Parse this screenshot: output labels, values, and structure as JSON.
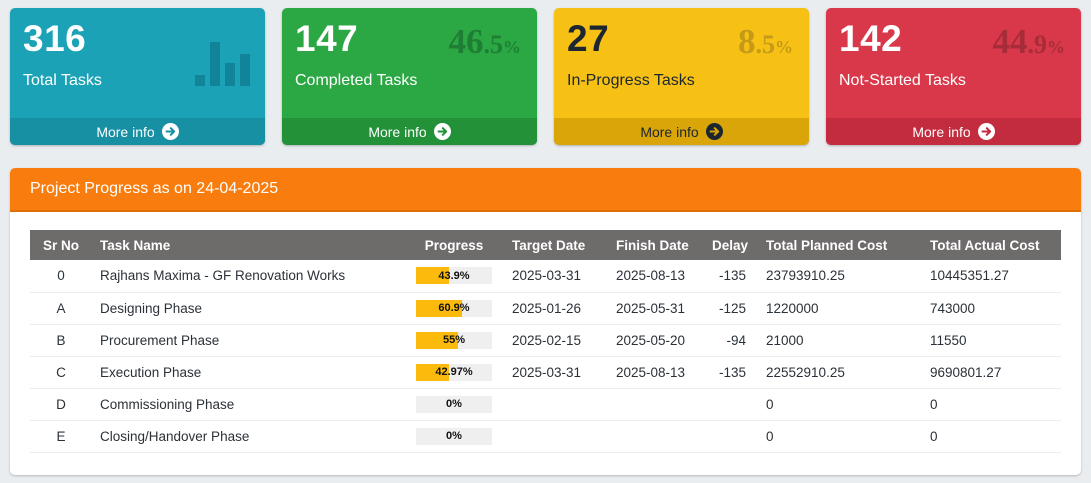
{
  "page": {
    "background_color": "#e9edf0"
  },
  "cards": [
    {
      "name": "total-tasks",
      "value": "316",
      "label": "Total Tasks",
      "more_label": "More info",
      "icon": "bar-chart-icon",
      "colors": {
        "bg": "#1BA2B7",
        "footer_bg": "#1790A4",
        "text": "#FFFFFF",
        "icon": "#12849A"
      }
    },
    {
      "name": "completed-tasks",
      "value": "147",
      "label": "Completed Tasks",
      "pct_int": "46",
      "pct_dec": ".5",
      "pct_sym": "%",
      "more_label": "More info",
      "colors": {
        "bg": "#2BA844",
        "footer_bg": "#239138",
        "text": "#FFFFFF",
        "pct": "#1E7E33"
      }
    },
    {
      "name": "in-progress-tasks",
      "value": "27",
      "label": "In-Progress Tasks",
      "pct_int": "8",
      "pct_dec": ".5",
      "pct_sym": "%",
      "more_label": "More info",
      "colors": {
        "bg": "#F6C114",
        "footer_bg": "#D9A509",
        "text": "#1B2631",
        "pct": "#C49A18"
      }
    },
    {
      "name": "not-started-tasks",
      "value": "142",
      "label": "Not-Started Tasks",
      "pct_int": "44",
      "pct_dec": ".9",
      "pct_sym": "%",
      "more_label": "More info",
      "colors": {
        "bg": "#D9384A",
        "footer_bg": "#C22C3E",
        "text": "#FFFFFF",
        "pct": "#A62C39"
      }
    }
  ],
  "panel": {
    "title": "Project Progress as on 24-04-2025",
    "header_bg": "#F97D0E"
  },
  "table": {
    "header_bg": "#6E6B6B",
    "progress_fill_color": "#FCBB0C",
    "columns": [
      "Sr No",
      "Task Name",
      "Progress",
      "Target Date",
      "Finish Date",
      "Delay",
      "Total Planned Cost",
      "Total Actual Cost"
    ],
    "rows": [
      {
        "sr": "0",
        "task": "Rajhans Maxima - GF Renovation Works",
        "progress": 43.9,
        "progress_label": "43.9%",
        "target": "2025-03-31",
        "finish": "2025-08-13",
        "delay": "-135",
        "planned": "23793910.25",
        "actual": "10445351.27"
      },
      {
        "sr": "A",
        "task": "Designing Phase",
        "progress": 60.9,
        "progress_label": "60.9%",
        "target": "2025-01-26",
        "finish": "2025-05-31",
        "delay": "-125",
        "planned": "1220000",
        "actual": "743000"
      },
      {
        "sr": "B",
        "task": "Procurement Phase",
        "progress": 55,
        "progress_label": "55%",
        "target": "2025-02-15",
        "finish": "2025-05-20",
        "delay": "-94",
        "planned": "21000",
        "actual": "11550"
      },
      {
        "sr": "C",
        "task": "Execution Phase",
        "progress": 42.97,
        "progress_label": "42.97%",
        "target": "2025-03-31",
        "finish": "2025-08-13",
        "delay": "-135",
        "planned": "22552910.25",
        "actual": "9690801.27"
      },
      {
        "sr": "D",
        "task": "Commissioning Phase",
        "progress": 0,
        "progress_label": "0%",
        "target": "",
        "finish": "",
        "delay": "",
        "planned": "0",
        "actual": "0"
      },
      {
        "sr": "E",
        "task": "Closing/Handover Phase",
        "progress": 0,
        "progress_label": "0%",
        "target": "",
        "finish": "",
        "delay": "",
        "planned": "0",
        "actual": "0"
      }
    ]
  }
}
